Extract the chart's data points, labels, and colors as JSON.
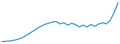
{
  "x": [
    0,
    1,
    2,
    3,
    4,
    5,
    6,
    7,
    8,
    9,
    10,
    11,
    12,
    13,
    14,
    15,
    16,
    17,
    18,
    19,
    20,
    21,
    22,
    23,
    24,
    25,
    26,
    27,
    28,
    29,
    30
  ],
  "y": [
    1,
    1.2,
    1.5,
    2,
    2.8,
    3.8,
    5.5,
    7.5,
    9.5,
    11.5,
    13.5,
    15,
    16,
    17,
    17.5,
    15.5,
    16.5,
    14.5,
    16,
    15,
    13,
    14.5,
    13,
    15,
    13.5,
    15.5,
    16.5,
    15.5,
    18.5,
    25,
    33
  ],
  "line_color": "#3a9fd8",
  "background_color": "#ffffff",
  "ylim": [
    -1,
    36
  ],
  "xlim": [
    -0.5,
    30.5
  ]
}
